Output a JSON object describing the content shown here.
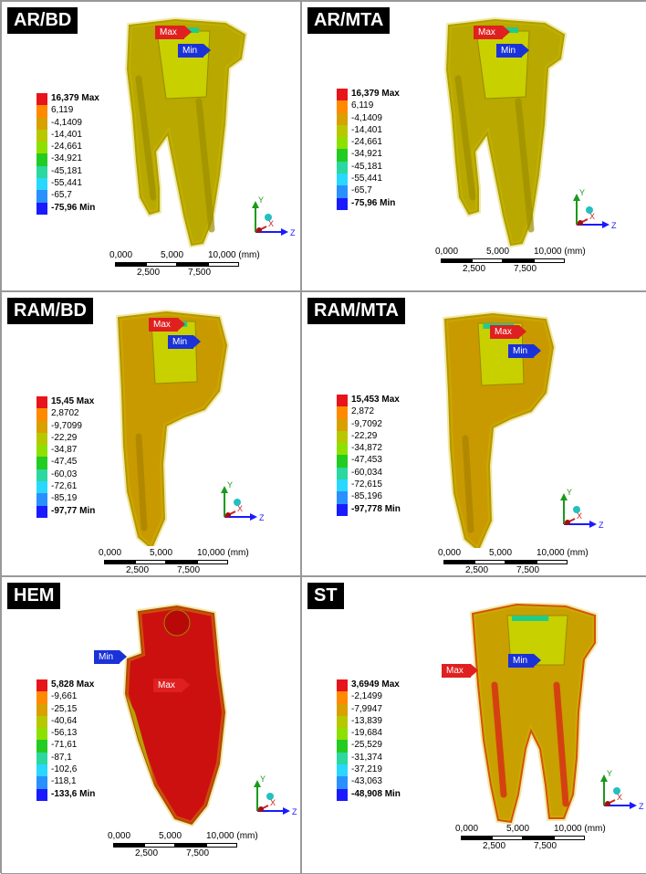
{
  "colors": [
    "#e8141c",
    "#ff8a00",
    "#d8a000",
    "#b8c800",
    "#8ee000",
    "#22cc22",
    "#2ad8a0",
    "#2ad8ff",
    "#2a90ff",
    "#1a1aff"
  ],
  "scale": {
    "ticks_top": [
      "0,000",
      "5,000",
      "10,000 (mm)"
    ],
    "ticks_bottom": [
      "2,500",
      "7,500"
    ]
  },
  "axis_labels": {
    "y": "Y",
    "x": "X",
    "z": "Z"
  },
  "panels": [
    {
      "label": "AR/BD",
      "max_tag": "Max",
      "min_tag": "Min",
      "legend": [
        "16,379 Max",
        "6,119",
        "-4,1409",
        "-14,401",
        "-24,661",
        "-34,921",
        "-45,181",
        "-55,441",
        "-65,7",
        "-75,96 Min"
      ],
      "body_color": "#b8a800",
      "accent": "#9c8e00"
    },
    {
      "label": "AR/MTA",
      "max_tag": "Max",
      "min_tag": "Min",
      "legend": [
        "16,379 Max",
        "6,119",
        "-4,1409",
        "-14,401",
        "-24,661",
        "-34,921",
        "-45,181",
        "-55,441",
        "-65,7",
        "-75,96 Min"
      ],
      "body_color": "#b8a800",
      "accent": "#9c8e00"
    },
    {
      "label": "RAM/BD",
      "max_tag": "Max",
      "min_tag": "Min",
      "legend": [
        "15,45 Max",
        "2,8702",
        "-9,7099",
        "-22,29",
        "-34,87",
        "-47,45",
        "-60,03",
        "-72,61",
        "-85,19",
        "-97,77 Min"
      ],
      "body_color": "#c89a00",
      "accent": "#a88000"
    },
    {
      "label": "RAM/MTA",
      "max_tag": "Max",
      "min_tag": "Min",
      "legend": [
        "15,453 Max",
        "2,872",
        "-9,7092",
        "-22,29",
        "-34,872",
        "-47,453",
        "-60,034",
        "-72,615",
        "-85,196",
        "-97,778 Min"
      ],
      "body_color": "#c89a00",
      "accent": "#a88000"
    },
    {
      "label": "HEM",
      "max_tag": "Max",
      "min_tag": "Min",
      "legend": [
        "5,828 Max",
        "-9,661",
        "-25,15",
        "-40,64",
        "-56,13",
        "-71,61",
        "-87,1",
        "-102,6",
        "-118,1",
        "-133,6 Min"
      ],
      "body_color": "#cc1010",
      "accent": "#a00808"
    },
    {
      "label": "ST",
      "max_tag": "Max",
      "min_tag": "Min",
      "legend": [
        "3,6949 Max",
        "-2,1499",
        "-7,9947",
        "-13,839",
        "-19,684",
        "-25,529",
        "-31,374",
        "-37,219",
        "-43,063",
        "-48,908 Min"
      ],
      "body_color": "#c8a000",
      "accent": "#d81818"
    }
  ]
}
